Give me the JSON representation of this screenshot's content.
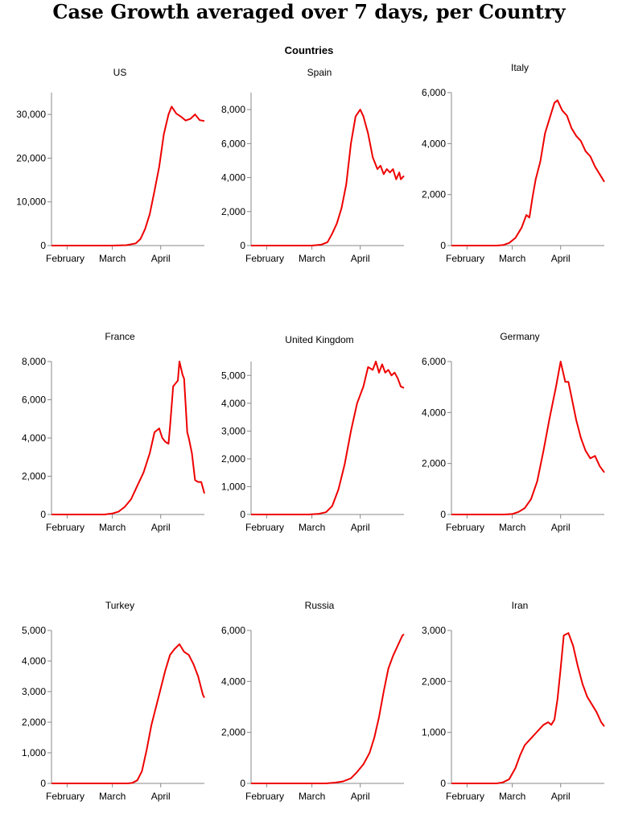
{
  "title": "Case Growth averaged over 7 days, per Country",
  "facet_header": "Countries",
  "colors": {
    "line": "#ee0000",
    "axis": "#888888",
    "text": "#000000"
  },
  "x_ticks": [
    "February",
    "March",
    "April"
  ],
  "x_domain": [
    "2020-01-22",
    "2020-04-29"
  ],
  "chart_data": [
    {
      "type": "line",
      "title": "US",
      "ylim": [
        0,
        35000
      ],
      "yticks": [
        0,
        10000,
        20000,
        30000
      ],
      "x": [
        "2020-01-22",
        "2020-02-15",
        "2020-03-01",
        "2020-03-10",
        "2020-03-16",
        "2020-03-19",
        "2020-03-22",
        "2020-03-25",
        "2020-03-28",
        "2020-03-31",
        "2020-04-03",
        "2020-04-06",
        "2020-04-08",
        "2020-04-11",
        "2020-04-14",
        "2020-04-17",
        "2020-04-20",
        "2020-04-23",
        "2020-04-26",
        "2020-04-29"
      ],
      "values": [
        0,
        0,
        0,
        100,
        500,
        1500,
        3800,
        7200,
        12500,
        18000,
        25500,
        30000,
        31800,
        30200,
        29500,
        28600,
        29000,
        30000,
        28700,
        28500
      ]
    },
    {
      "type": "line",
      "title": "Spain",
      "ylim": [
        0,
        9000
      ],
      "yticks": [
        0,
        2000,
        4000,
        6000,
        8000
      ],
      "x": [
        "2020-01-22",
        "2020-03-01",
        "2020-03-07",
        "2020-03-11",
        "2020-03-14",
        "2020-03-17",
        "2020-03-20",
        "2020-03-23",
        "2020-03-26",
        "2020-03-29",
        "2020-04-01",
        "2020-04-03",
        "2020-04-06",
        "2020-04-09",
        "2020-04-12",
        "2020-04-14",
        "2020-04-16",
        "2020-04-18",
        "2020-04-20",
        "2020-04-22",
        "2020-04-24",
        "2020-04-26",
        "2020-04-27",
        "2020-04-29"
      ],
      "values": [
        0,
        0,
        50,
        200,
        700,
        1300,
        2200,
        3600,
        6000,
        7600,
        8000,
        7600,
        6600,
        5200,
        4500,
        4700,
        4200,
        4500,
        4300,
        4500,
        3900,
        4300,
        3900,
        4100
      ]
    },
    {
      "type": "line",
      "title": "Italy",
      "ylim": [
        0,
        6000
      ],
      "yticks": [
        0,
        2000,
        4000,
        6000
      ],
      "x": [
        "2020-01-22",
        "2020-02-20",
        "2020-02-24",
        "2020-02-28",
        "2020-03-03",
        "2020-03-07",
        "2020-03-10",
        "2020-03-12",
        "2020-03-14",
        "2020-03-16",
        "2020-03-19",
        "2020-03-22",
        "2020-03-25",
        "2020-03-28",
        "2020-03-30",
        "2020-04-02",
        "2020-04-05",
        "2020-04-08",
        "2020-04-11",
        "2020-04-14",
        "2020-04-17",
        "2020-04-20",
        "2020-04-23",
        "2020-04-26",
        "2020-04-29"
      ],
      "values": [
        0,
        0,
        20,
        100,
        300,
        700,
        1200,
        1100,
        1900,
        2600,
        3300,
        4400,
        5000,
        5600,
        5700,
        5300,
        5100,
        4600,
        4300,
        4100,
        3700,
        3500,
        3100,
        2800,
        2500
      ]
    },
    {
      "type": "line",
      "title": "France",
      "ylim": [
        0,
        8000
      ],
      "yticks": [
        0,
        2000,
        4000,
        6000,
        8000
      ],
      "x": [
        "2020-01-22",
        "2020-02-25",
        "2020-03-01",
        "2020-03-05",
        "2020-03-09",
        "2020-03-13",
        "2020-03-17",
        "2020-03-21",
        "2020-03-25",
        "2020-03-28",
        "2020-03-31",
        "2020-04-02",
        "2020-04-04",
        "2020-04-06",
        "2020-04-07",
        "2020-04-09",
        "2020-04-12",
        "2020-04-13",
        "2020-04-15",
        "2020-04-16",
        "2020-04-18",
        "2020-04-19",
        "2020-04-21",
        "2020-04-23",
        "2020-04-25",
        "2020-04-27",
        "2020-04-28",
        "2020-04-29"
      ],
      "values": [
        0,
        0,
        50,
        150,
        400,
        800,
        1500,
        2200,
        3200,
        4300,
        4500,
        4000,
        3800,
        3700,
        4600,
        6700,
        7000,
        8000,
        7300,
        7100,
        4300,
        4000,
        3200,
        1800,
        1700,
        1700,
        1400,
        1100
      ]
    },
    {
      "type": "line",
      "title": "United Kingdom",
      "ylim": [
        0,
        5500
      ],
      "yticks": [
        0,
        1000,
        2000,
        3000,
        4000,
        5000
      ],
      "x": [
        "2020-01-22",
        "2020-02-28",
        "2020-03-05",
        "2020-03-10",
        "2020-03-14",
        "2020-03-18",
        "2020-03-22",
        "2020-03-26",
        "2020-03-30",
        "2020-04-03",
        "2020-04-06",
        "2020-04-09",
        "2020-04-11",
        "2020-04-13",
        "2020-04-15",
        "2020-04-17",
        "2020-04-19",
        "2020-04-21",
        "2020-04-23",
        "2020-04-25",
        "2020-04-27",
        "2020-04-29"
      ],
      "values": [
        0,
        0,
        20,
        80,
        300,
        900,
        1800,
        3000,
        4000,
        4600,
        5300,
        5200,
        5500,
        5100,
        5400,
        5100,
        5200,
        5000,
        5100,
        4900,
        4600,
        4550
      ]
    },
    {
      "type": "line",
      "title": "Germany",
      "ylim": [
        0,
        6000
      ],
      "yticks": [
        0,
        2000,
        4000,
        6000
      ],
      "x": [
        "2020-01-22",
        "2020-02-25",
        "2020-03-01",
        "2020-03-05",
        "2020-03-09",
        "2020-03-13",
        "2020-03-17",
        "2020-03-21",
        "2020-03-25",
        "2020-03-29",
        "2020-04-01",
        "2020-04-04",
        "2020-04-06",
        "2020-04-08",
        "2020-04-11",
        "2020-04-14",
        "2020-04-17",
        "2020-04-20",
        "2020-04-23",
        "2020-04-26",
        "2020-04-29"
      ],
      "values": [
        0,
        0,
        20,
        100,
        250,
        600,
        1300,
        2500,
        3800,
        5000,
        6000,
        5200,
        5200,
        4600,
        3700,
        3000,
        2500,
        2200,
        2300,
        1900,
        1650
      ]
    },
    {
      "type": "line",
      "title": "Turkey",
      "ylim": [
        0,
        5000
      ],
      "yticks": [
        0,
        1000,
        2000,
        3000,
        4000,
        5000
      ],
      "x": [
        "2020-01-22",
        "2020-03-11",
        "2020-03-14",
        "2020-03-17",
        "2020-03-20",
        "2020-03-23",
        "2020-03-26",
        "2020-03-29",
        "2020-04-01",
        "2020-04-04",
        "2020-04-07",
        "2020-04-10",
        "2020-04-13",
        "2020-04-16",
        "2020-04-19",
        "2020-04-22",
        "2020-04-25",
        "2020-04-28",
        "2020-04-29"
      ],
      "values": [
        0,
        0,
        20,
        100,
        400,
        1100,
        1900,
        2500,
        3100,
        3700,
        4200,
        4400,
        4550,
        4300,
        4200,
        3900,
        3500,
        2900,
        2800
      ]
    },
    {
      "type": "line",
      "title": "Russia",
      "ylim": [
        0,
        6000
      ],
      "yticks": [
        0,
        2000,
        4000,
        6000
      ],
      "x": [
        "2020-01-22",
        "2020-03-10",
        "2020-03-16",
        "2020-03-21",
        "2020-03-26",
        "2020-03-30",
        "2020-04-03",
        "2020-04-07",
        "2020-04-10",
        "2020-04-13",
        "2020-04-16",
        "2020-04-19",
        "2020-04-22",
        "2020-04-25",
        "2020-04-28",
        "2020-04-29"
      ],
      "values": [
        0,
        0,
        30,
        80,
        200,
        450,
        750,
        1200,
        1800,
        2600,
        3600,
        4500,
        5000,
        5400,
        5800,
        5850
      ]
    },
    {
      "type": "line",
      "title": "Iran",
      "ylim": [
        0,
        3000
      ],
      "yticks": [
        0,
        1000,
        2000,
        3000
      ],
      "x": [
        "2020-01-22",
        "2020-02-20",
        "2020-02-24",
        "2020-02-28",
        "2020-03-03",
        "2020-03-06",
        "2020-03-09",
        "2020-03-12",
        "2020-03-15",
        "2020-03-18",
        "2020-03-21",
        "2020-03-24",
        "2020-03-26",
        "2020-03-28",
        "2020-03-30",
        "2020-04-01",
        "2020-04-03",
        "2020-04-06",
        "2020-04-09",
        "2020-04-12",
        "2020-04-15",
        "2020-04-18",
        "2020-04-21",
        "2020-04-24",
        "2020-04-27",
        "2020-04-29"
      ],
      "values": [
        0,
        0,
        20,
        80,
        300,
        550,
        750,
        850,
        950,
        1050,
        1150,
        1200,
        1150,
        1250,
        1650,
        2250,
        2900,
        2950,
        2700,
        2300,
        1950,
        1700,
        1550,
        1400,
        1200,
        1120
      ]
    }
  ]
}
